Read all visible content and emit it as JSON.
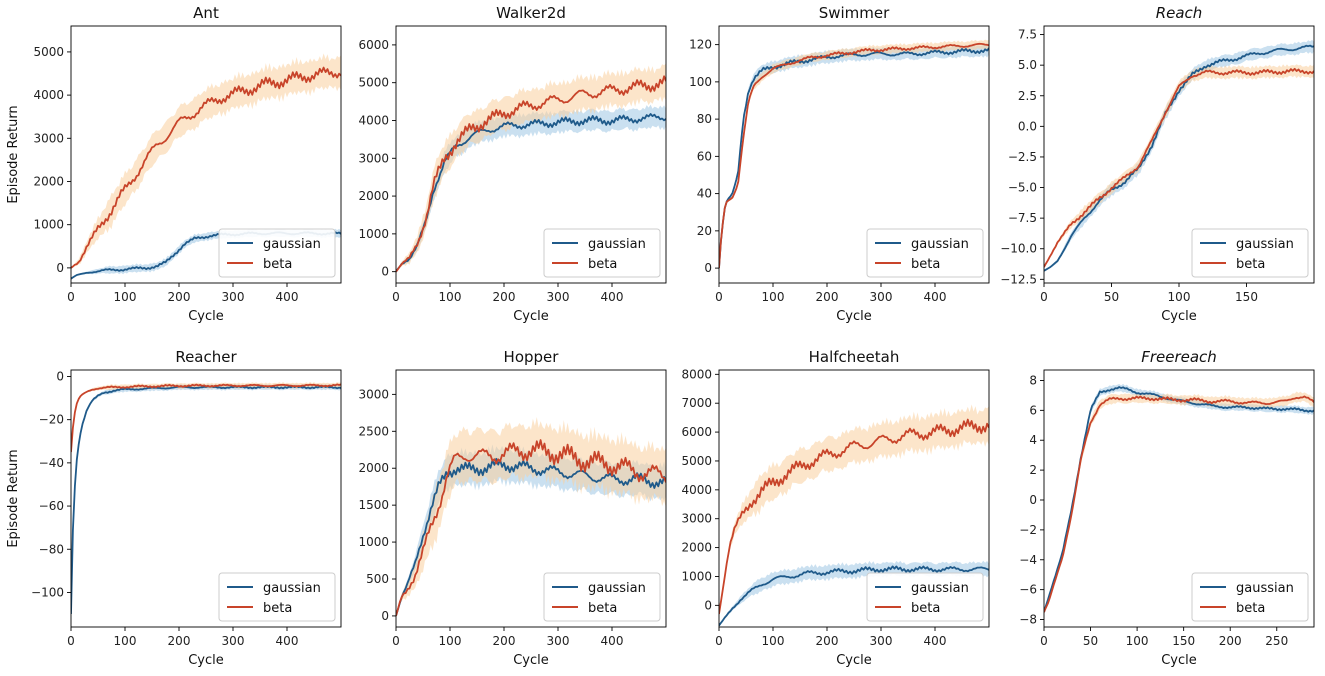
{
  "colors": {
    "gaussian": "#1f5a8a",
    "beta": "#c8442a",
    "gaussian_band": "#9ec6e3",
    "beta_band": "#f9cf9f"
  },
  "chart_data": [
    {
      "type": "line",
      "title": "Ant",
      "italic": false,
      "xlabel": "Cycle",
      "ylabel": "Episode Return",
      "xlim": [
        0,
        500
      ],
      "ylim": [
        -350,
        5600
      ],
      "xticks": [
        0,
        100,
        200,
        300,
        400
      ],
      "yticks": [
        0,
        1000,
        2000,
        3000,
        4000,
        5000
      ],
      "ytick_labels": [
        "0",
        "1000",
        "2000",
        "3000",
        "4000",
        "5000"
      ],
      "series": [
        {
          "name": "gaussian",
          "x": [
            0,
            10,
            30,
            60,
            100,
            140,
            160,
            175,
            190,
            210,
            230,
            260,
            300,
            350,
            400,
            450,
            500
          ],
          "y": [
            -250,
            -170,
            -110,
            -60,
            -30,
            0,
            40,
            120,
            300,
            550,
            680,
            750,
            780,
            800,
            800,
            800,
            790
          ],
          "spread": 110
        },
        {
          "name": "beta",
          "x": [
            0,
            15,
            30,
            50,
            75,
            100,
            130,
            160,
            200,
            240,
            280,
            320,
            360,
            400,
            440,
            470,
            500
          ],
          "y": [
            0,
            150,
            500,
            900,
            1350,
            1800,
            2350,
            2850,
            3350,
            3700,
            3950,
            4100,
            4250,
            4350,
            4450,
            4500,
            4550
          ],
          "spread": 450
        }
      ],
      "legend": [
        "gaussian",
        "beta"
      ],
      "legend_loc": "lower-right"
    },
    {
      "type": "line",
      "title": "Walker2d",
      "italic": false,
      "xlabel": "Cycle",
      "ylabel": "",
      "xlim": [
        0,
        500
      ],
      "ylim": [
        -300,
        6500
      ],
      "xticks": [
        0,
        100,
        200,
        300,
        400
      ],
      "yticks": [
        0,
        1000,
        2000,
        3000,
        4000,
        5000,
        6000
      ],
      "ytick_labels": [
        "0",
        "1000",
        "2000",
        "3000",
        "4000",
        "5000",
        "6000"
      ],
      "series": [
        {
          "name": "gaussian",
          "x": [
            0,
            10,
            25,
            40,
            55,
            70,
            90,
            110,
            140,
            170,
            200,
            250,
            300,
            350,
            400,
            450,
            500
          ],
          "y": [
            0,
            200,
            350,
            700,
            1300,
            2200,
            2900,
            3300,
            3600,
            3750,
            3850,
            3900,
            3950,
            4000,
            4000,
            4050,
            4100
          ],
          "spread": 350
        },
        {
          "name": "beta",
          "x": [
            0,
            10,
            25,
            40,
            55,
            70,
            90,
            110,
            140,
            170,
            200,
            250,
            300,
            350,
            400,
            450,
            500
          ],
          "y": [
            0,
            200,
            350,
            750,
            1400,
            2300,
            3000,
            3400,
            3800,
            4000,
            4200,
            4400,
            4550,
            4700,
            4800,
            4900,
            5000
          ],
          "spread": 550
        }
      ],
      "legend": [
        "gaussian",
        "beta"
      ],
      "legend_loc": "lower-right"
    },
    {
      "type": "line",
      "title": "Swimmer",
      "italic": false,
      "xlabel": "Cycle",
      "ylabel": "",
      "xlim": [
        0,
        500
      ],
      "ylim": [
        -8,
        130
      ],
      "xticks": [
        0,
        100,
        200,
        300,
        400
      ],
      "yticks": [
        0,
        20,
        40,
        60,
        80,
        100,
        120
      ],
      "ytick_labels": [
        "0",
        "20",
        "40",
        "60",
        "80",
        "100",
        "120"
      ],
      "series": [
        {
          "name": "gaussian",
          "x": [
            0,
            5,
            12,
            25,
            35,
            45,
            55,
            65,
            80,
            100,
            130,
            170,
            220,
            280,
            350,
            420,
            500
          ],
          "y": [
            0,
            20,
            35,
            40,
            50,
            80,
            96,
            102,
            106,
            108,
            110,
            112,
            114,
            115,
            115,
            116,
            117
          ],
          "spread": 4
        },
        {
          "name": "beta",
          "x": [
            0,
            5,
            12,
            25,
            35,
            45,
            55,
            65,
            80,
            100,
            130,
            170,
            220,
            280,
            350,
            420,
            500
          ],
          "y": [
            0,
            20,
            35,
            38,
            45,
            70,
            90,
            98,
            103,
            107,
            110,
            113,
            115,
            117,
            118,
            119,
            120
          ],
          "spread": 3
        }
      ],
      "legend": [
        "gaussian",
        "beta"
      ],
      "legend_loc": "lower-right"
    },
    {
      "type": "line",
      "title": "Reach",
      "italic": true,
      "xlabel": "Cycle",
      "ylabel": "",
      "xlim": [
        0,
        200
      ],
      "ylim": [
        -12.8,
        8.2
      ],
      "xticks": [
        0,
        50,
        100,
        150
      ],
      "yticks": [
        -12.5,
        -10.0,
        -7.5,
        -5.0,
        -2.5,
        0.0,
        2.5,
        5.0,
        7.5
      ],
      "ytick_labels": [
        "−12.5",
        "−10.0",
        "−7.5",
        "−5.0",
        "−2.5",
        "0.0",
        "2.5",
        "5.0",
        "7.5"
      ],
      "series": [
        {
          "name": "gaussian",
          "x": [
            0,
            5,
            10,
            20,
            30,
            40,
            50,
            60,
            70,
            80,
            90,
            100,
            110,
            120,
            140,
            160,
            180,
            200
          ],
          "y": [
            -11.8,
            -11.5,
            -11.0,
            -9.0,
            -7.5,
            -6.2,
            -5.2,
            -4.5,
            -3.5,
            -1.5,
            1.0,
            3.0,
            4.2,
            5.0,
            5.5,
            6.0,
            6.3,
            6.5
          ],
          "spread": 0.6
        },
        {
          "name": "beta",
          "x": [
            0,
            5,
            10,
            20,
            30,
            40,
            50,
            60,
            70,
            80,
            90,
            100,
            110,
            120,
            140,
            160,
            180,
            200
          ],
          "y": [
            -11.5,
            -10.5,
            -9.5,
            -8.0,
            -7.0,
            -6.0,
            -5.0,
            -4.2,
            -3.2,
            -1.2,
            1.2,
            3.2,
            4.2,
            4.4,
            4.4,
            4.4,
            4.5,
            4.5
          ],
          "spread": 0.6
        }
      ],
      "legend": [
        "gaussian",
        "beta"
      ],
      "legend_loc": "lower-right"
    },
    {
      "type": "line",
      "title": "Reacher",
      "italic": false,
      "xlabel": "Cycle",
      "ylabel": "Episode Return",
      "xlim": [
        0,
        500
      ],
      "ylim": [
        -116,
        3
      ],
      "xticks": [
        0,
        100,
        200,
        300,
        400
      ],
      "yticks": [
        -100,
        -80,
        -60,
        -40,
        -20,
        0
      ],
      "ytick_labels": [
        "−100",
        "−80",
        "−60",
        "−40",
        "−20",
        "0"
      ],
      "series": [
        {
          "name": "gaussian",
          "x": [
            0,
            3,
            6,
            10,
            15,
            20,
            30,
            40,
            50,
            60,
            80,
            100,
            150,
            200,
            300,
            400,
            500
          ],
          "y": [
            -110,
            -75,
            -55,
            -40,
            -30,
            -23,
            -15,
            -11,
            -9,
            -7.5,
            -6.5,
            -6,
            -5.5,
            -5,
            -5,
            -5,
            -5
          ],
          "spread": 1.5
        },
        {
          "name": "beta",
          "x": [
            0,
            3,
            6,
            10,
            15,
            20,
            30,
            40,
            50,
            60,
            80,
            100,
            150,
            200,
            300,
            400,
            500
          ],
          "y": [
            -35,
            -25,
            -18,
            -13,
            -10,
            -8.5,
            -7,
            -6,
            -5.5,
            -5.2,
            -5,
            -4.8,
            -4.5,
            -4.3,
            -4.2,
            -4.2,
            -4.1
          ],
          "spread": 1.5
        }
      ],
      "legend": [
        "gaussian",
        "beta"
      ],
      "legend_loc": "lower-right"
    },
    {
      "type": "line",
      "title": "Hopper",
      "italic": false,
      "xlabel": "Cycle",
      "ylabel": "",
      "xlim": [
        0,
        500
      ],
      "ylim": [
        -150,
        3330
      ],
      "xticks": [
        0,
        100,
        200,
        300,
        400
      ],
      "yticks": [
        0,
        500,
        1000,
        1500,
        2000,
        2500,
        3000
      ],
      "ytick_labels": [
        "0",
        "500",
        "1000",
        "1500",
        "2000",
        "2500",
        "3000"
      ],
      "series": [
        {
          "name": "gaussian",
          "x": [
            0,
            10,
            20,
            35,
            50,
            65,
            80,
            95,
            110,
            130,
            160,
            200,
            250,
            300,
            350,
            400,
            450,
            500
          ],
          "y": [
            0,
            250,
            400,
            700,
            1100,
            1450,
            1750,
            1950,
            2000,
            1980,
            2000,
            2050,
            2000,
            1950,
            1900,
            1850,
            1850,
            1800
          ],
          "spread": 280
        },
        {
          "name": "beta",
          "x": [
            0,
            10,
            20,
            35,
            50,
            65,
            80,
            95,
            110,
            130,
            160,
            200,
            250,
            300,
            350,
            400,
            450,
            500
          ],
          "y": [
            0,
            250,
            350,
            550,
            850,
            1200,
            1550,
            1900,
            2100,
            2200,
            2150,
            2200,
            2250,
            2200,
            2100,
            2050,
            1950,
            1900
          ],
          "spread": 450
        }
      ],
      "legend": [
        "gaussian",
        "beta"
      ],
      "legend_loc": "lower-right"
    },
    {
      "type": "line",
      "title": "Halfcheetah",
      "italic": false,
      "xlabel": "Cycle",
      "ylabel": "",
      "xlim": [
        0,
        500
      ],
      "ylim": [
        -750,
        8150
      ],
      "xticks": [
        0,
        100,
        200,
        300,
        400
      ],
      "yticks": [
        0,
        1000,
        2000,
        3000,
        4000,
        5000,
        6000,
        7000,
        8000
      ],
      "ytick_labels": [
        "0",
        "1000",
        "2000",
        "3000",
        "4000",
        "5000",
        "6000",
        "7000",
        "8000"
      ],
      "series": [
        {
          "name": "gaussian",
          "x": [
            0,
            10,
            25,
            40,
            60,
            80,
            100,
            130,
            160,
            200,
            250,
            300,
            350,
            400,
            450,
            500
          ],
          "y": [
            -700,
            -450,
            -100,
            200,
            500,
            750,
            900,
            1000,
            1100,
            1150,
            1200,
            1250,
            1250,
            1250,
            1250,
            1250
          ],
          "spread": 300
        },
        {
          "name": "beta",
          "x": [
            0,
            5,
            12,
            20,
            30,
            45,
            60,
            80,
            100,
            130,
            160,
            200,
            250,
            300,
            350,
            400,
            450,
            500
          ],
          "y": [
            -300,
            300,
            1200,
            2100,
            2700,
            3200,
            3600,
            3950,
            4250,
            4600,
            4900,
            5200,
            5500,
            5700,
            5900,
            6000,
            6150,
            6250
          ],
          "spread": 750
        }
      ],
      "legend": [
        "gaussian",
        "beta"
      ],
      "legend_loc": "lower-right"
    },
    {
      "type": "line",
      "title": "Freereach",
      "italic": true,
      "xlabel": "Cycle",
      "ylabel": "",
      "xlim": [
        0,
        290
      ],
      "ylim": [
        -8.5,
        8.7
      ],
      "xticks": [
        0,
        50,
        100,
        150,
        200,
        250
      ],
      "yticks": [
        -8,
        -6,
        -4,
        -2,
        0,
        2,
        4,
        6,
        8
      ],
      "ytick_labels": [
        "−8",
        "−6",
        "−4",
        "−2",
        "0",
        "2",
        "4",
        "6",
        "8"
      ],
      "series": [
        {
          "name": "gaussian",
          "x": [
            0,
            5,
            10,
            20,
            30,
            40,
            50,
            60,
            70,
            80,
            90,
            100,
            120,
            140,
            160,
            180,
            200,
            220,
            240,
            260,
            280,
            290
          ],
          "y": [
            -7.5,
            -6.5,
            -5.5,
            -3.5,
            -0.5,
            3.0,
            6.0,
            7.2,
            7.4,
            7.5,
            7.4,
            7.2,
            7.0,
            6.7,
            6.5,
            6.3,
            6.2,
            6.2,
            6.1,
            6.1,
            6.0,
            6.0
          ],
          "spread": 0.3
        },
        {
          "name": "beta",
          "x": [
            0,
            5,
            10,
            20,
            30,
            40,
            50,
            60,
            70,
            80,
            90,
            100,
            120,
            140,
            160,
            180,
            200,
            220,
            240,
            260,
            270,
            280,
            290
          ],
          "y": [
            -7.5,
            -6.8,
            -5.8,
            -3.8,
            -0.8,
            2.8,
            5.2,
            6.4,
            6.7,
            6.8,
            6.8,
            6.8,
            6.8,
            6.7,
            6.7,
            6.6,
            6.6,
            6.5,
            6.5,
            6.6,
            6.9,
            6.9,
            6.5
          ],
          "spread": 0.4
        }
      ],
      "legend": [
        "gaussian",
        "beta"
      ],
      "legend_loc": "lower-right"
    }
  ]
}
